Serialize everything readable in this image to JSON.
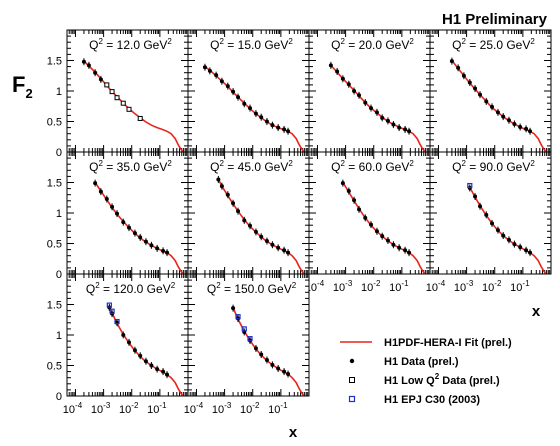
{
  "header": {
    "title": "H1 Preliminary"
  },
  "axes": {
    "ylabel_base": "F",
    "ylabel_sub": "2",
    "xlabel": "x",
    "ylim": [
      0,
      2
    ],
    "xlog": true,
    "xlim": [
      5e-05,
      1
    ],
    "ytick_labels": [
      "0",
      "0.5",
      "1",
      "1.5"
    ],
    "xtick_labels": [
      {
        "base": "10",
        "exp": "-4"
      },
      {
        "base": "10",
        "exp": "-3"
      },
      {
        "base": "10",
        "exp": "-2"
      },
      {
        "base": "10",
        "exp": "-1"
      }
    ]
  },
  "legend": {
    "placement": "bottom-right",
    "items": [
      {
        "kind": "line",
        "label": "H1PDF-HERA-I Fit (prel.)"
      },
      {
        "kind": "dot",
        "label": "H1 Data (prel.)"
      },
      {
        "kind": "open-square",
        "label_pre": "H1 Low Q",
        "label_sup": "2",
        "label_post": " Data (prel.)"
      },
      {
        "kind": "blue-square",
        "label": "H1 EPJ C30 (2003)"
      }
    ]
  },
  "colors": {
    "fit": "#e8251d",
    "h1_data": "#000000",
    "low_q2": "#000000",
    "epj": "#1f2fc8",
    "frame": "#000000"
  },
  "chart_data": [
    {
      "type": "scatter",
      "q2_label": {
        "pre": "Q",
        "sup": "2",
        "mid": " = 12.0 GeV",
        "sup2": "2"
      },
      "series": [
        {
          "name": "H1PDF-HERA-I Fit (prel.)",
          "x": [
            0.0002,
            0.0003,
            0.0005,
            0.0008,
            0.0012,
            0.002,
            0.003,
            0.005,
            0.008,
            0.012,
            0.02,
            0.03,
            0.05,
            0.08,
            0.12,
            0.18,
            0.25,
            0.35,
            0.45,
            0.55,
            0.65
          ],
          "y": [
            1.49,
            1.41,
            1.31,
            1.2,
            1.11,
            0.99,
            0.91,
            0.8,
            0.71,
            0.64,
            0.56,
            0.5,
            0.44,
            0.4,
            0.37,
            0.34,
            0.3,
            0.22,
            0.12,
            0.05,
            0.01
          ]
        },
        {
          "name": "H1 Data (prel.)",
          "x": [
            0.0002,
            0.0003,
            0.0005,
            0.0008
          ],
          "y": [
            1.48,
            1.42,
            1.3,
            1.19
          ]
        },
        {
          "name": "H1 Low Q2 Data (prel.)",
          "x": [
            0.0013,
            0.002,
            0.003,
            0.005,
            0.008,
            0.02
          ],
          "y": [
            1.1,
            0.99,
            0.89,
            0.8,
            0.7,
            0.55
          ]
        }
      ]
    },
    {
      "type": "scatter",
      "q2_label": {
        "pre": "Q",
        "sup": "2",
        "mid": " = 15.0 GeV",
        "sup2": "2"
      },
      "series": [
        {
          "name": "H1PDF-HERA-I Fit (prel.)",
          "x": [
            0.0002,
            0.0003,
            0.0005,
            0.0008,
            0.0012,
            0.002,
            0.003,
            0.005,
            0.008,
            0.012,
            0.02,
            0.03,
            0.05,
            0.08,
            0.12,
            0.18,
            0.25,
            0.35,
            0.45,
            0.55,
            0.65
          ],
          "y": [
            1.4,
            1.34,
            1.25,
            1.16,
            1.09,
            0.98,
            0.9,
            0.8,
            0.71,
            0.64,
            0.56,
            0.5,
            0.44,
            0.4,
            0.37,
            0.34,
            0.3,
            0.22,
            0.12,
            0.05,
            0.01
          ]
        },
        {
          "name": "H1 Data (prel.)",
          "x": [
            0.0002,
            0.0003,
            0.0005,
            0.0008,
            0.0013,
            0.002,
            0.003,
            0.005,
            0.008,
            0.013,
            0.02,
            0.032,
            0.05,
            0.08,
            0.13,
            0.18
          ],
          "y": [
            1.39,
            1.33,
            1.26,
            1.16,
            1.08,
            0.99,
            0.9,
            0.79,
            0.72,
            0.63,
            0.57,
            0.5,
            0.44,
            0.4,
            0.37,
            0.34
          ]
        }
      ]
    },
    {
      "type": "scatter",
      "q2_label": {
        "pre": "Q",
        "sup": "2",
        "mid": " = 20.0 GeV",
        "sup2": "2"
      },
      "series": [
        {
          "name": "H1PDF-HERA-I Fit (prel.)",
          "x": [
            0.0003,
            0.0005,
            0.0008,
            0.0012,
            0.002,
            0.003,
            0.005,
            0.008,
            0.012,
            0.02,
            0.03,
            0.05,
            0.08,
            0.12,
            0.18,
            0.25,
            0.35,
            0.45,
            0.55,
            0.65
          ],
          "y": [
            1.42,
            1.31,
            1.2,
            1.12,
            1.01,
            0.92,
            0.81,
            0.72,
            0.65,
            0.57,
            0.51,
            0.45,
            0.41,
            0.37,
            0.34,
            0.3,
            0.22,
            0.12,
            0.05,
            0.01
          ]
        },
        {
          "name": "H1 Data (prel.)",
          "x": [
            0.0003,
            0.0005,
            0.0008,
            0.0013,
            0.002,
            0.003,
            0.005,
            0.008,
            0.013,
            0.02,
            0.032,
            0.05,
            0.08,
            0.13,
            0.18
          ],
          "y": [
            1.42,
            1.32,
            1.2,
            1.11,
            1.0,
            0.93,
            0.81,
            0.72,
            0.65,
            0.56,
            0.51,
            0.45,
            0.4,
            0.37,
            0.34
          ]
        }
      ]
    },
    {
      "type": "scatter",
      "q2_label": {
        "pre": "Q",
        "sup": "2",
        "mid": " = 25.0 GeV",
        "sup2": "2"
      },
      "series": [
        {
          "name": "H1PDF-HERA-I Fit (prel.)",
          "x": [
            0.0003,
            0.0005,
            0.0008,
            0.0012,
            0.002,
            0.003,
            0.005,
            0.008,
            0.012,
            0.02,
            0.03,
            0.05,
            0.08,
            0.12,
            0.18,
            0.25,
            0.35,
            0.45,
            0.55,
            0.65
          ],
          "y": [
            1.5,
            1.37,
            1.25,
            1.15,
            1.03,
            0.94,
            0.83,
            0.73,
            0.66,
            0.58,
            0.52,
            0.46,
            0.41,
            0.37,
            0.34,
            0.3,
            0.22,
            0.12,
            0.05,
            0.01
          ]
        },
        {
          "name": "H1 Data (prel.)",
          "x": [
            0.0003,
            0.0005,
            0.0008,
            0.0013,
            0.002,
            0.003,
            0.005,
            0.008,
            0.013,
            0.02,
            0.032,
            0.05,
            0.08,
            0.13,
            0.18
          ],
          "y": [
            1.49,
            1.38,
            1.25,
            1.14,
            1.04,
            0.94,
            0.83,
            0.74,
            0.65,
            0.58,
            0.52,
            0.46,
            0.41,
            0.38,
            0.34
          ]
        }
      ]
    },
    {
      "type": "scatter",
      "q2_label": {
        "pre": "Q",
        "sup": "2",
        "mid": " = 35.0 GeV",
        "sup2": "2"
      },
      "series": [
        {
          "name": "H1PDF-HERA-I Fit (prel.)",
          "x": [
            0.0005,
            0.0008,
            0.0012,
            0.002,
            0.003,
            0.005,
            0.008,
            0.012,
            0.02,
            0.03,
            0.05,
            0.08,
            0.12,
            0.18,
            0.25,
            0.35,
            0.45,
            0.55,
            0.65
          ],
          "y": [
            1.5,
            1.36,
            1.24,
            1.09,
            0.98,
            0.86,
            0.76,
            0.68,
            0.59,
            0.53,
            0.47,
            0.42,
            0.38,
            0.35,
            0.3,
            0.22,
            0.12,
            0.05,
            0.01
          ]
        },
        {
          "name": "H1 Data (prel.)",
          "x": [
            0.0005,
            0.0008,
            0.0013,
            0.002,
            0.003,
            0.005,
            0.008,
            0.013,
            0.02,
            0.032,
            0.05,
            0.08,
            0.13,
            0.18
          ],
          "y": [
            1.49,
            1.35,
            1.23,
            1.1,
            0.99,
            0.85,
            0.76,
            0.67,
            0.6,
            0.53,
            0.47,
            0.42,
            0.38,
            0.35
          ]
        }
      ]
    },
    {
      "type": "scatter",
      "q2_label": {
        "pre": "Q",
        "sup": "2",
        "mid": " = 45.0 GeV",
        "sup2": "2"
      },
      "series": [
        {
          "name": "H1PDF-HERA-I Fit (prel.)",
          "x": [
            0.0006,
            0.0008,
            0.0012,
            0.002,
            0.003,
            0.005,
            0.008,
            0.012,
            0.02,
            0.03,
            0.05,
            0.08,
            0.12,
            0.18,
            0.25,
            0.35,
            0.45,
            0.55,
            0.65
          ],
          "y": [
            1.55,
            1.44,
            1.31,
            1.15,
            1.03,
            0.89,
            0.78,
            0.7,
            0.61,
            0.54,
            0.48,
            0.43,
            0.39,
            0.35,
            0.3,
            0.22,
            0.12,
            0.05,
            0.01
          ]
        },
        {
          "name": "H1 Data (prel.)",
          "x": [
            0.0006,
            0.0008,
            0.0013,
            0.002,
            0.003,
            0.005,
            0.008,
            0.013,
            0.02,
            0.032,
            0.05,
            0.08,
            0.13,
            0.18
          ],
          "y": [
            1.55,
            1.44,
            1.3,
            1.16,
            1.03,
            0.88,
            0.79,
            0.69,
            0.61,
            0.54,
            0.48,
            0.43,
            0.39,
            0.35
          ]
        }
      ]
    },
    {
      "type": "scatter",
      "q2_label": {
        "pre": "Q",
        "sup": "2",
        "mid": " = 60.0 GeV",
        "sup2": "2"
      },
      "series": [
        {
          "name": "H1PDF-HERA-I Fit (prel.)",
          "x": [
            0.0008,
            0.0012,
            0.002,
            0.003,
            0.005,
            0.008,
            0.012,
            0.02,
            0.03,
            0.05,
            0.08,
            0.12,
            0.18,
            0.25,
            0.35,
            0.45,
            0.55,
            0.65
          ],
          "y": [
            1.5,
            1.37,
            1.2,
            1.07,
            0.92,
            0.8,
            0.71,
            0.62,
            0.55,
            0.48,
            0.43,
            0.39,
            0.35,
            0.3,
            0.22,
            0.12,
            0.05,
            0.01
          ]
        },
        {
          "name": "H1 Data (prel.)",
          "x": [
            0.0008,
            0.0013,
            0.002,
            0.003,
            0.005,
            0.008,
            0.013,
            0.02,
            0.032,
            0.05,
            0.08,
            0.13,
            0.18
          ],
          "y": [
            1.49,
            1.36,
            1.21,
            1.06,
            0.92,
            0.81,
            0.7,
            0.62,
            0.55,
            0.48,
            0.43,
            0.39,
            0.35
          ]
        }
      ]
    },
    {
      "type": "scatter",
      "q2_label": {
        "pre": "Q",
        "sup": "2",
        "mid": " = 90.0 GeV",
        "sup2": "2"
      },
      "series": [
        {
          "name": "H1PDF-HERA-I Fit (prel.)",
          "x": [
            0.0013,
            0.002,
            0.003,
            0.005,
            0.008,
            0.012,
            0.02,
            0.03,
            0.05,
            0.08,
            0.12,
            0.18,
            0.25,
            0.35,
            0.45,
            0.55,
            0.65
          ],
          "y": [
            1.42,
            1.26,
            1.12,
            0.96,
            0.83,
            0.73,
            0.63,
            0.56,
            0.49,
            0.44,
            0.39,
            0.35,
            0.3,
            0.22,
            0.12,
            0.05,
            0.01
          ]
        },
        {
          "name": "H1 Data (prel.)",
          "x": [
            0.0013,
            0.002,
            0.003,
            0.005,
            0.008,
            0.013,
            0.02,
            0.032,
            0.05,
            0.08,
            0.13,
            0.18
          ],
          "y": [
            1.41,
            1.27,
            1.11,
            0.97,
            0.83,
            0.72,
            0.63,
            0.56,
            0.49,
            0.44,
            0.39,
            0.35
          ]
        },
        {
          "name": "H1 EPJ C30 (2003)",
          "x": [
            0.0013
          ],
          "y": [
            1.45
          ]
        }
      ]
    },
    {
      "type": "scatter",
      "q2_label": {
        "pre": "Q",
        "sup": "2",
        "mid": " = 120.0 GeV",
        "sup2": "2"
      },
      "series": [
        {
          "name": "H1PDF-HERA-I Fit (prel.)",
          "x": [
            0.0016,
            0.002,
            0.003,
            0.005,
            0.008,
            0.012,
            0.02,
            0.03,
            0.05,
            0.08,
            0.12,
            0.18,
            0.25,
            0.35,
            0.45,
            0.55,
            0.65
          ],
          "y": [
            1.45,
            1.36,
            1.19,
            1.01,
            0.87,
            0.76,
            0.65,
            0.57,
            0.5,
            0.44,
            0.4,
            0.35,
            0.3,
            0.22,
            0.12,
            0.05,
            0.01
          ]
        },
        {
          "name": "H1 Data (prel.)",
          "x": [
            0.0016,
            0.002,
            0.003,
            0.005,
            0.008,
            0.013,
            0.02,
            0.032,
            0.05,
            0.08,
            0.13,
            0.18
          ],
          "y": [
            1.45,
            1.35,
            1.2,
            1.0,
            0.88,
            0.75,
            0.66,
            0.57,
            0.5,
            0.44,
            0.4,
            0.35
          ]
        },
        {
          "name": "H1 EPJ C30 (2003)",
          "x": [
            0.0016,
            0.002,
            0.003
          ],
          "y": [
            1.49,
            1.39,
            1.22
          ]
        }
      ]
    },
    {
      "type": "scatter",
      "q2_label": {
        "pre": "Q",
        "sup": "2",
        "mid": " = 150.0 GeV",
        "sup2": "2"
      },
      "series": [
        {
          "name": "H1PDF-HERA-I Fit (prel.)",
          "x": [
            0.002,
            0.003,
            0.005,
            0.008,
            0.012,
            0.02,
            0.03,
            0.05,
            0.08,
            0.12,
            0.18,
            0.25,
            0.35,
            0.45,
            0.55,
            0.65
          ],
          "y": [
            1.45,
            1.26,
            1.06,
            0.91,
            0.79,
            0.67,
            0.59,
            0.51,
            0.45,
            0.4,
            0.36,
            0.3,
            0.22,
            0.12,
            0.05,
            0.01
          ]
        },
        {
          "name": "H1 Data (prel.)",
          "x": [
            0.002,
            0.003,
            0.005,
            0.008,
            0.013,
            0.02,
            0.032,
            0.05,
            0.08,
            0.13,
            0.18
          ],
          "y": [
            1.44,
            1.27,
            1.05,
            0.91,
            0.78,
            0.68,
            0.59,
            0.51,
            0.45,
            0.4,
            0.36
          ]
        },
        {
          "name": "H1 EPJ C30 (2003)",
          "x": [
            0.003,
            0.005,
            0.008
          ],
          "y": [
            1.3,
            1.1,
            0.94
          ]
        }
      ]
    }
  ]
}
